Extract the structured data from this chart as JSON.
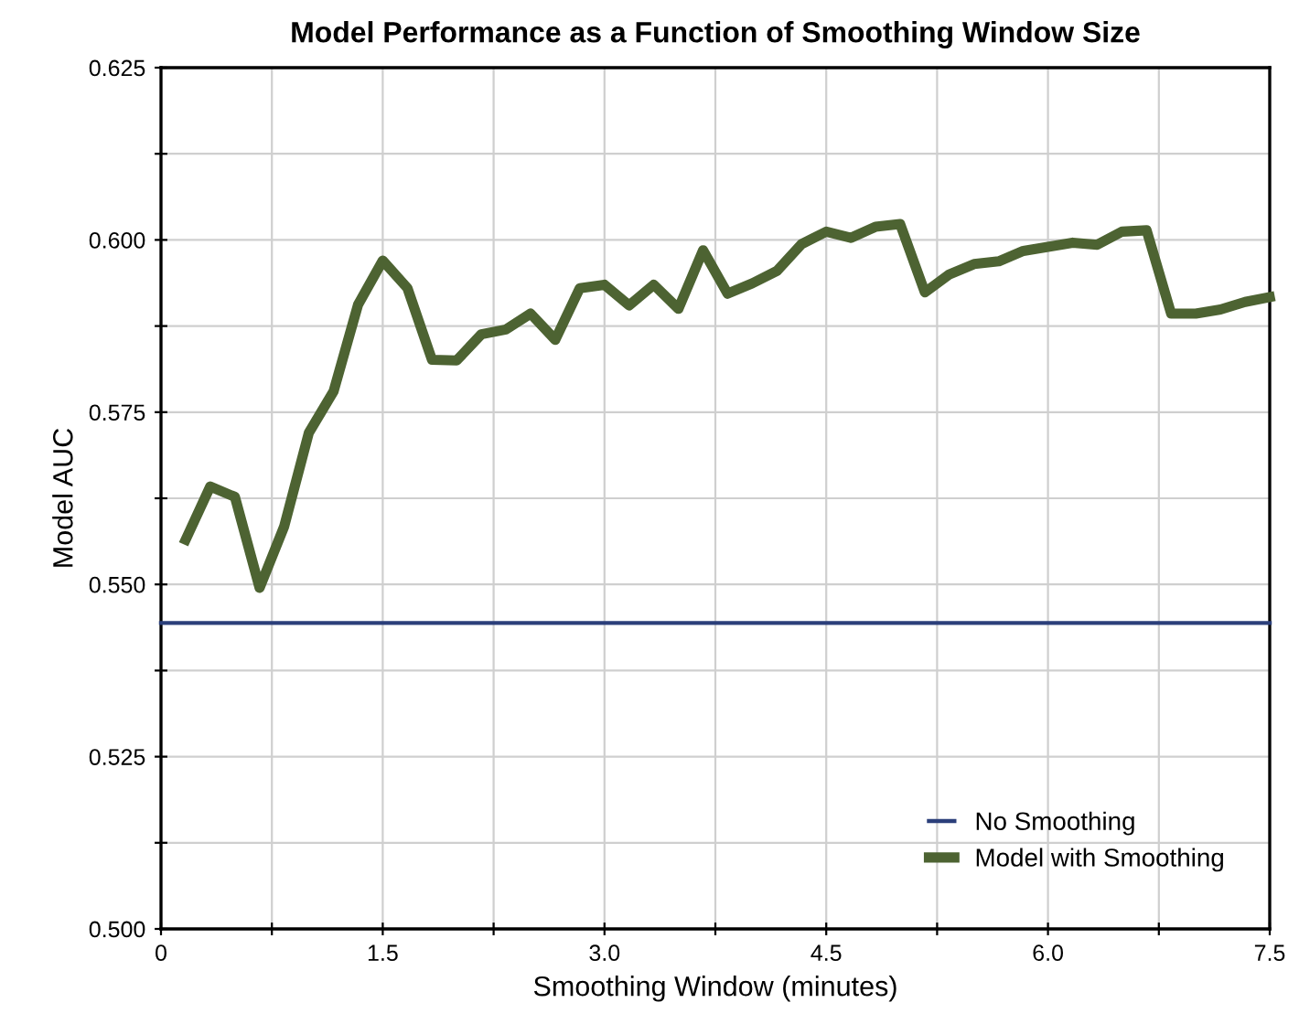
{
  "chart_data": {
    "type": "line",
    "title": "Model Performance as a Function of Smoothing Window Size",
    "xlabel": "Smoothing Window (minutes)",
    "ylabel": "Model AUC",
    "series": [
      {
        "name": "No Smoothing",
        "color": "#2b3f7a",
        "x": [
          0,
          7.5
        ],
        "values": [
          0.5444,
          0.5444
        ]
      },
      {
        "name": "Model with Smoothing",
        "color": "#4d6332",
        "x": [
          0.167,
          0.333,
          0.5,
          0.667,
          0.833,
          1.0,
          1.167,
          1.333,
          1.5,
          1.667,
          1.833,
          2.0,
          2.167,
          2.333,
          2.5,
          2.667,
          2.833,
          3.0,
          3.167,
          3.333,
          3.5,
          3.667,
          3.833,
          4.0,
          4.167,
          4.333,
          4.5,
          4.667,
          4.833,
          5.0,
          5.167,
          5.333,
          5.5,
          5.667,
          5.833,
          6.0,
          6.167,
          6.333,
          6.5,
          6.667,
          6.833,
          7.0,
          7.167,
          7.333,
          7.5
        ],
        "values": [
          0.5565,
          0.5642,
          0.5627,
          0.5495,
          0.5584,
          0.572,
          0.578,
          0.5906,
          0.597,
          0.593,
          0.5826,
          0.5825,
          0.5863,
          0.587,
          0.5893,
          0.5855,
          0.593,
          0.5935,
          0.5905,
          0.5935,
          0.59,
          0.5985,
          0.5922,
          0.5937,
          0.5955,
          0.5994,
          0.6012,
          0.6003,
          0.6019,
          0.6023,
          0.5924,
          0.595,
          0.5965,
          0.5969,
          0.5984,
          0.599,
          0.5996,
          0.5993,
          0.6012,
          0.6014,
          0.5893,
          0.5893,
          0.5899,
          0.591,
          0.5917
        ]
      }
    ],
    "xlim": [
      0,
      7.5
    ],
    "xticks": [
      0,
      {
        "value": 0.75,
        "label": null
      },
      1.5,
      {
        "value": 2.25,
        "label": null
      },
      {
        "value": 3.0,
        "label": "3.0"
      },
      {
        "value": 3.75,
        "label": null
      },
      4.5,
      {
        "value": 5.25,
        "label": null
      },
      {
        "value": 6.0,
        "label": "6.0"
      },
      {
        "value": 6.75,
        "label": null
      },
      7.5
    ],
    "ylim": [
      0.5,
      0.625
    ],
    "yticks": [
      {
        "value": 0.5,
        "label": "0.500"
      },
      {
        "value": 0.5125,
        "label": null
      },
      0.525,
      {
        "value": 0.5375,
        "label": null
      },
      {
        "value": 0.55,
        "label": "0.550"
      },
      {
        "value": 0.5625,
        "label": null
      },
      0.575,
      {
        "value": 0.5875,
        "label": null
      },
      {
        "value": 0.6,
        "label": "0.600"
      },
      {
        "value": 0.6125,
        "label": null
      },
      0.625
    ],
    "grid": true,
    "legend": "bottom right",
    "line_style": "solid",
    "marker": "none"
  }
}
